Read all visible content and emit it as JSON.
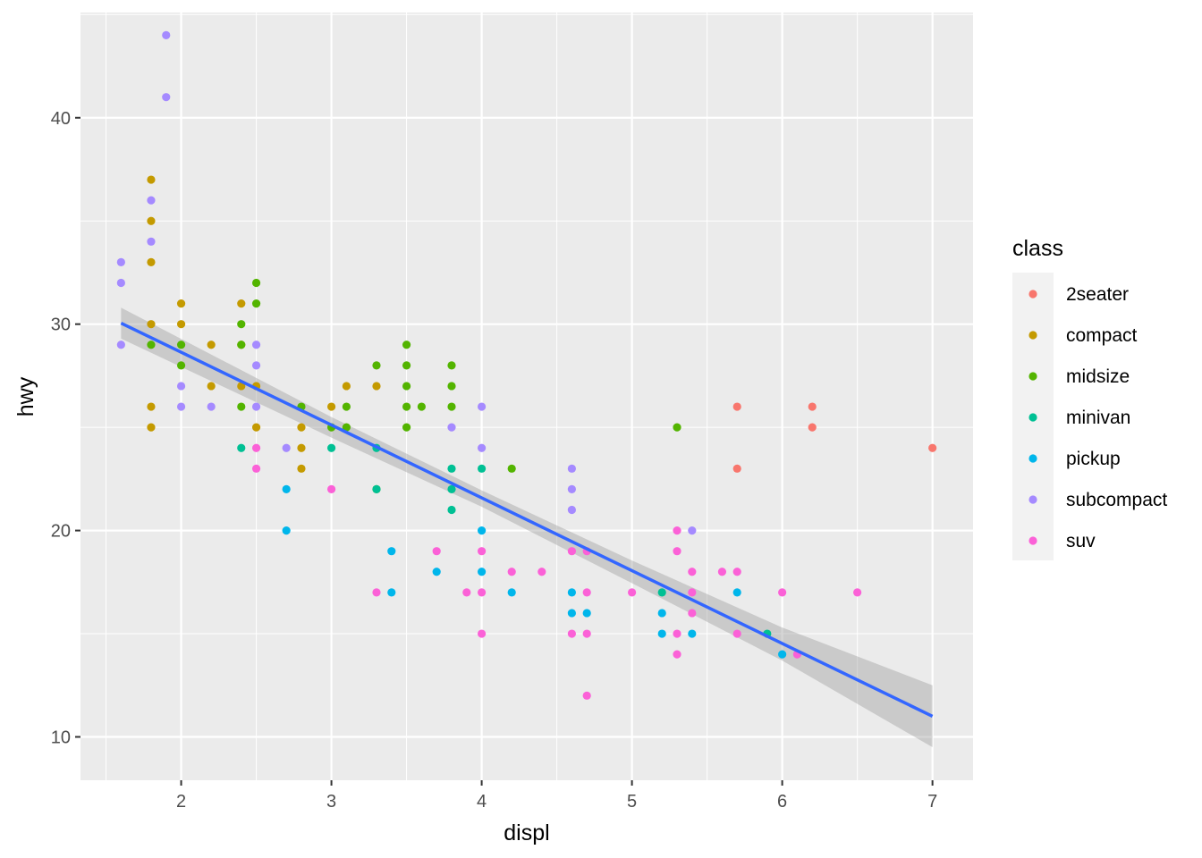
{
  "chart_data": {
    "type": "scatter",
    "title": "",
    "xlabel": "displ",
    "ylabel": "hwy",
    "xlim": [
      1.33,
      7.27
    ],
    "ylim": [
      7.9,
      45.1
    ],
    "xticks": [
      2,
      3,
      4,
      5,
      6,
      7
    ],
    "yticks": [
      10,
      20,
      30,
      40
    ],
    "grid": true,
    "legend": {
      "title": "class",
      "position": "right",
      "entries": [
        {
          "name": "2seater",
          "color": "#F8766D"
        },
        {
          "name": "compact",
          "color": "#C49A00"
        },
        {
          "name": "midsize",
          "color": "#53B400"
        },
        {
          "name": "minivan",
          "color": "#00C094"
        },
        {
          "name": "pickup",
          "color": "#00B6EB"
        },
        {
          "name": "subcompact",
          "color": "#A58AFF"
        },
        {
          "name": "suv",
          "color": "#FB61D7"
        }
      ]
    },
    "trend": {
      "type": "linear",
      "color": "#3366FF",
      "band_color": "#999999",
      "points": [
        {
          "x": 1.6,
          "y": 30.05,
          "lo": 29.3,
          "hi": 30.8
        },
        {
          "x": 3.0,
          "y": 25.0,
          "lo": 24.5,
          "hi": 25.5
        },
        {
          "x": 4.0,
          "y": 21.55,
          "lo": 21.15,
          "hi": 21.95
        },
        {
          "x": 5.0,
          "y": 18.0,
          "lo": 17.45,
          "hi": 18.55
        },
        {
          "x": 6.0,
          "y": 14.5,
          "lo": 13.7,
          "hi": 15.3
        },
        {
          "x": 7.0,
          "y": 11.0,
          "lo": 9.5,
          "hi": 12.5
        }
      ]
    },
    "series": [
      {
        "name": "2seater",
        "color": "#F8766D",
        "points": [
          [
            5.7,
            26
          ],
          [
            5.7,
            23
          ],
          [
            6.2,
            26
          ],
          [
            6.2,
            25
          ],
          [
            7.0,
            24
          ]
        ]
      },
      {
        "name": "compact",
        "color": "#C49A00",
        "points": [
          [
            1.8,
            37
          ],
          [
            1.8,
            35
          ],
          [
            1.8,
            33
          ],
          [
            1.8,
            30
          ],
          [
            1.8,
            26
          ],
          [
            1.8,
            25
          ],
          [
            2.0,
            31
          ],
          [
            2.0,
            30
          ],
          [
            2.2,
            29
          ],
          [
            2.2,
            27
          ],
          [
            2.4,
            31
          ],
          [
            2.4,
            29
          ],
          [
            2.4,
            27
          ],
          [
            2.5,
            27
          ],
          [
            2.5,
            25
          ],
          [
            2.8,
            25
          ],
          [
            2.8,
            24
          ],
          [
            2.8,
            23
          ],
          [
            3.0,
            26
          ],
          [
            3.1,
            27
          ],
          [
            3.3,
            27
          ]
        ]
      },
      {
        "name": "midsize",
        "color": "#53B400",
        "points": [
          [
            1.8,
            29
          ],
          [
            2.0,
            29
          ],
          [
            2.0,
            28
          ],
          [
            2.4,
            30
          ],
          [
            2.4,
            29
          ],
          [
            2.4,
            26
          ],
          [
            2.5,
            32
          ],
          [
            2.5,
            31
          ],
          [
            2.8,
            26
          ],
          [
            3.0,
            25
          ],
          [
            3.1,
            26
          ],
          [
            3.1,
            25
          ],
          [
            3.3,
            28
          ],
          [
            3.3,
            22
          ],
          [
            3.5,
            29
          ],
          [
            3.5,
            28
          ],
          [
            3.5,
            27
          ],
          [
            3.5,
            26
          ],
          [
            3.5,
            25
          ],
          [
            3.6,
            26
          ],
          [
            3.8,
            28
          ],
          [
            3.8,
            27
          ],
          [
            3.8,
            26
          ],
          [
            4.2,
            23
          ],
          [
            5.3,
            25
          ]
        ]
      },
      {
        "name": "minivan",
        "color": "#00C094",
        "points": [
          [
            2.4,
            24
          ],
          [
            3.0,
            24
          ],
          [
            3.3,
            24
          ],
          [
            3.3,
            22
          ],
          [
            3.8,
            23
          ],
          [
            3.8,
            22
          ],
          [
            3.8,
            21
          ],
          [
            4.0,
            23
          ],
          [
            5.2,
            17
          ],
          [
            5.9,
            15
          ]
        ]
      },
      {
        "name": "pickup",
        "color": "#00B6EB",
        "points": [
          [
            2.7,
            22
          ],
          [
            2.7,
            20
          ],
          [
            3.4,
            19
          ],
          [
            3.4,
            17
          ],
          [
            3.7,
            18
          ],
          [
            4.0,
            20
          ],
          [
            4.0,
            18
          ],
          [
            4.2,
            17
          ],
          [
            4.6,
            17
          ],
          [
            4.6,
            16
          ],
          [
            4.7,
            16
          ],
          [
            5.2,
            16
          ],
          [
            5.2,
            15
          ],
          [
            5.4,
            15
          ],
          [
            5.7,
            17
          ],
          [
            6.0,
            14
          ]
        ]
      },
      {
        "name": "subcompact",
        "color": "#A58AFF",
        "points": [
          [
            1.6,
            33
          ],
          [
            1.6,
            32
          ],
          [
            1.6,
            29
          ],
          [
            1.8,
            36
          ],
          [
            1.8,
            34
          ],
          [
            1.9,
            44
          ],
          [
            1.9,
            41
          ],
          [
            2.0,
            27
          ],
          [
            2.0,
            26
          ],
          [
            2.2,
            26
          ],
          [
            2.5,
            29
          ],
          [
            2.5,
            28
          ],
          [
            2.5,
            26
          ],
          [
            2.7,
            24
          ],
          [
            3.8,
            25
          ],
          [
            4.0,
            26
          ],
          [
            4.0,
            24
          ],
          [
            4.6,
            23
          ],
          [
            4.6,
            22
          ],
          [
            4.6,
            21
          ],
          [
            5.4,
            20
          ]
        ]
      },
      {
        "name": "suv",
        "color": "#FB61D7",
        "points": [
          [
            2.5,
            24
          ],
          [
            2.5,
            23
          ],
          [
            3.0,
            22
          ],
          [
            3.3,
            17
          ],
          [
            3.7,
            19
          ],
          [
            3.9,
            17
          ],
          [
            4.0,
            19
          ],
          [
            4.0,
            17
          ],
          [
            4.0,
            15
          ],
          [
            4.2,
            18
          ],
          [
            4.4,
            18
          ],
          [
            4.6,
            19
          ],
          [
            4.6,
            15
          ],
          [
            4.7,
            19
          ],
          [
            4.7,
            17
          ],
          [
            4.7,
            15
          ],
          [
            4.7,
            12
          ],
          [
            5.0,
            17
          ],
          [
            5.3,
            20
          ],
          [
            5.3,
            19
          ],
          [
            5.3,
            15
          ],
          [
            5.3,
            14
          ],
          [
            5.4,
            18
          ],
          [
            5.4,
            17
          ],
          [
            5.4,
            16
          ],
          [
            5.6,
            18
          ],
          [
            5.7,
            18
          ],
          [
            5.7,
            15
          ],
          [
            6.0,
            17
          ],
          [
            6.1,
            14
          ],
          [
            6.5,
            17
          ]
        ]
      }
    ]
  }
}
